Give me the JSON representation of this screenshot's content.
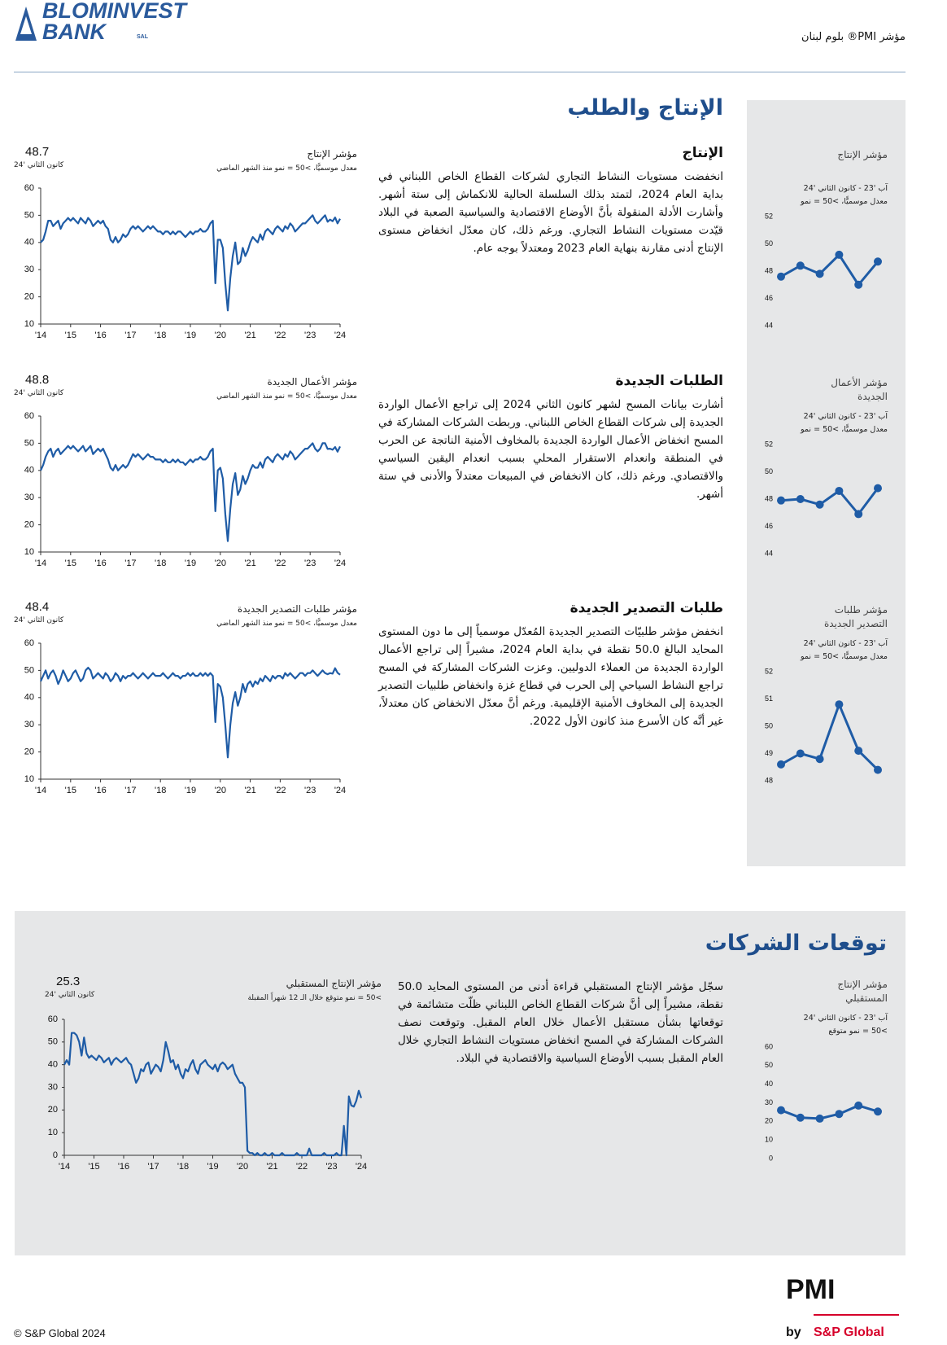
{
  "header": {
    "logo_line1": "BLOMINVEST",
    "logo_line2": "BANK",
    "logo_suffix": "SAL",
    "report_title": "مؤشر PMI® بلوم لبنان"
  },
  "sections": [
    {
      "title": "الإنتاج والطلب",
      "items": [
        {
          "heading": "الإنتاج",
          "text": "انخفضت مستويات النشاط التجاري لشركات القطاع الخاص اللبناني في بداية العام 2024، لتمتد بذلك السلسلة الحالية للانكماش إلى ستة أشهر. وأشارت الأدلة المنقولة بأنَّ الأوضاع الاقتصادية والسياسية الصعبة في البلاد قيّدت مستويات النشاط التجاري. ورغم ذلك، كان معدّل انخفاض مستوى الإنتاج أدنى مقارنة بنهاية العام 2023 ومعتدلاً بوجه عام.",
          "chart": {
            "type": "line",
            "title": "مؤشر الإنتاج",
            "subtitle": "معدل موسميًّا، >50 = نمو منذ الشهر الماضي",
            "latest": 48.7,
            "latest_label": "كانون الثاني '24",
            "color": "#1f5ca6",
            "values": [
              40,
              41,
              44,
              48,
              48,
              46,
              47,
              48,
              45,
              47,
              48,
              49,
              48,
              49,
              48,
              47,
              49,
              48,
              47,
              49,
              48,
              46,
              47,
              48,
              47,
              48,
              46,
              45,
              41,
              40,
              42,
              40,
              41,
              43,
              42,
              43,
              45,
              46,
              45,
              46,
              45,
              44,
              45,
              46,
              45,
              46,
              45,
              44,
              44,
              43,
              44,
              44,
              43,
              44,
              43,
              44,
              44,
              43,
              42,
              43,
              44,
              43,
              44,
              44,
              45,
              44,
              44,
              45,
              47,
              48,
              25,
              41,
              41,
              38,
              25,
              15,
              27,
              35,
              40,
              32,
              33,
              38,
              35,
              37,
              40,
              42,
              41,
              40,
              43,
              41,
              44,
              45,
              44,
              43,
              45,
              46,
              45,
              44,
              46,
              45,
              47,
              46,
              44,
              45,
              46,
              47,
              47,
              48,
              49,
              50,
              48,
              47,
              48,
              49,
              50,
              47.6,
              48.4,
              47.8,
              49.2,
              47.0,
              48.7
            ],
            "xlim": [
              0,
              120
            ],
            "xticks": [
              {
                "value": 0,
                "label": "'14"
              },
              {
                "value": 12,
                "label": "'15"
              },
              {
                "value": 24,
                "label": "'16"
              },
              {
                "value": 36,
                "label": "'17"
              },
              {
                "value": 48,
                "label": "'18"
              },
              {
                "value": 60,
                "label": "'19"
              },
              {
                "value": 72,
                "label": "'20"
              },
              {
                "value": 84,
                "label": "'21"
              },
              {
                "value": 96,
                "label": "'22"
              },
              {
                "value": 108,
                "label": "'23"
              },
              {
                "value": 120,
                "label": "'24"
              }
            ],
            "ylim": [
              10,
              60
            ],
            "yticks": [
              10,
              20,
              30,
              40,
              50,
              60
            ]
          },
          "mini": {
            "type": "line",
            "title": "مؤشر الإنتاج",
            "period": "آب '23 - كانون الثاني '24",
            "subtitle": "معدل موسميًّا، >50 = نمو",
            "color": "#1f5ca6",
            "values": [
              47.6,
              48.4,
              47.8,
              49.2,
              47.0,
              48.7
            ],
            "ylim": [
              44,
              52
            ],
            "yticks": [
              44,
              46,
              48,
              50,
              52
            ]
          }
        },
        {
          "heading": "الطلبات الجديدة",
          "text": "أشارت بيانات المسح لشهر كانون الثاني 2024 إلى تراجع الأعمال الواردة الجديدة إلى شركات القطاع الخاص اللبناني. وربطت الشركات المشاركة في المسح انخفاض الأعمال الواردة الجديدة بالمخاوف الأمنية الناتجة عن الحرب في المنطقة وانعدام الاستقرار المحلي بسبب انعدام اليقين السياسي والاقتصادي. ورغم ذلك، كان الانخفاض في المبيعات معتدلاً والأدنى في ستة أشهر.",
          "chart": {
            "type": "line",
            "title": "مؤشر الأعمال الجديدة",
            "subtitle": "معدل موسميًّا، >50 = نمو منذ الشهر الماضي",
            "latest": 48.8,
            "latest_label": "كانون الثاني '24",
            "color": "#1f5ca6",
            "values": [
              40,
              42,
              45,
              47,
              48,
              45,
              47,
              48,
              46,
              47,
              48,
              49,
              48,
              49,
              48,
              47,
              48,
              49,
              47,
              48,
              49,
              46,
              47,
              48,
              47,
              48,
              46,
              44,
              41,
              40,
              42,
              40,
              41,
              42,
              41,
              42,
              44,
              46,
              45,
              46,
              45,
              44,
              45,
              46,
              45,
              45,
              44,
              44,
              44,
              43,
              44,
              43,
              43,
              44,
              43,
              44,
              43,
              43,
              42,
              43,
              44,
              43,
              44,
              44,
              45,
              44,
              44,
              45,
              47,
              48,
              25,
              40,
              41,
              37,
              24,
              14,
              26,
              35,
              39,
              31,
              33,
              38,
              35,
              37,
              40,
              42,
              41,
              41,
              43,
              41,
              44,
              45,
              44,
              43,
              45,
              46,
              45,
              44,
              46,
              45,
              47,
              46,
              44,
              45,
              46,
              47,
              48,
              48,
              49,
              50,
              48,
              47,
              48,
              50,
              50,
              47.9,
              48.0,
              47.6,
              48.6,
              46.9,
              48.8
            ],
            "xlim": [
              0,
              120
            ],
            "xticks": [
              {
                "value": 0,
                "label": "'14"
              },
              {
                "value": 12,
                "label": "'15"
              },
              {
                "value": 24,
                "label": "'16"
              },
              {
                "value": 36,
                "label": "'17"
              },
              {
                "value": 48,
                "label": "'18"
              },
              {
                "value": 60,
                "label": "'19"
              },
              {
                "value": 72,
                "label": "'20"
              },
              {
                "value": 84,
                "label": "'21"
              },
              {
                "value": 96,
                "label": "'22"
              },
              {
                "value": 108,
                "label": "'23"
              },
              {
                "value": 120,
                "label": "'24"
              }
            ],
            "ylim": [
              10,
              60
            ],
            "yticks": [
              10,
              20,
              30,
              40,
              50,
              60
            ]
          },
          "mini": {
            "type": "line",
            "title": "مؤشر الأعمال الجديدة",
            "period": "آب '23 - كانون الثاني '24",
            "subtitle": "معدل موسميًّا، >50 = نمو",
            "color": "#1f5ca6",
            "values": [
              47.9,
              48.0,
              47.6,
              48.6,
              46.9,
              48.8
            ],
            "ylim": [
              44,
              52
            ],
            "yticks": [
              44,
              46,
              48,
              50,
              52
            ]
          }
        },
        {
          "heading": "طلبات التصدير الجديدة",
          "text": "انخفض مؤشر طلبيّات التصدير الجديدة المُعدّل موسمياً إلى ما دون المستوى المحايد البالغ 50.0 نقطة في بداية العام 2024، مشيراً إلى تراجع الأعمال الواردة الجديدة من العملاء الدوليين. وعزت الشركات المشاركة في المسح تراجع النشاط السياحي إلى الحرب في قطاع غزة وانخفاض طلبيات التصدير الجديدة إلى المخاوف الأمنية الإقليمية. ورغم أنَّ معدّل الانخفاض كان معتدلاً، غير أنَّه كان الأسرع منذ كانون الأول 2022.",
          "chart": {
            "type": "line",
            "title": "مؤشر طلبات التصدير الجديدة",
            "subtitle": "معدل موسميًّا، >50 = نمو منذ الشهر الماضي",
            "latest": 48.4,
            "latest_label": "كانون الثاني '24",
            "color": "#1f5ca6",
            "values": [
              46,
              48,
              50,
              47,
              49,
              50,
              48,
              45,
              47,
              50,
              48,
              46,
              47,
              49,
              50,
              48,
              46,
              47,
              50,
              51,
              50,
              47,
              48,
              49,
              48,
              47,
              49,
              48,
              46,
              47,
              49,
              48,
              46,
              48,
              47,
              48,
              48,
              49,
              48,
              47,
              48,
              49,
              48,
              47,
              48,
              49,
              48,
              48,
              48,
              49,
              48,
              47,
              48,
              49,
              48,
              48,
              47,
              48,
              48,
              49,
              48,
              49,
              48,
              48,
              49,
              48,
              49,
              48,
              49,
              48,
              31,
              45,
              44,
              40,
              30,
              18,
              30,
              38,
              42,
              37,
              40,
              45,
              42,
              45,
              46,
              44,
              46,
              45,
              47,
              46,
              48,
              47,
              46,
              48,
              47,
              48,
              48,
              47,
              49,
              48,
              49,
              48,
              47,
              48,
              49,
              49,
              48,
              49,
              49,
              50,
              49,
              48,
              49,
              50,
              49,
              48.6,
              49.0,
              48.8,
              50.8,
              49.1,
              48.4
            ],
            "xlim": [
              0,
              120
            ],
            "xticks": [
              {
                "value": 0,
                "label": "'14"
              },
              {
                "value": 12,
                "label": "'15"
              },
              {
                "value": 24,
                "label": "'16"
              },
              {
                "value": 36,
                "label": "'17"
              },
              {
                "value": 48,
                "label": "'18"
              },
              {
                "value": 60,
                "label": "'19"
              },
              {
                "value": 72,
                "label": "'20"
              },
              {
                "value": 84,
                "label": "'21"
              },
              {
                "value": 96,
                "label": "'22"
              },
              {
                "value": 108,
                "label": "'23"
              },
              {
                "value": 120,
                "label": "'24"
              }
            ],
            "ylim": [
              10,
              60
            ],
            "yticks": [
              10,
              20,
              30,
              40,
              50,
              60
            ]
          },
          "mini": {
            "type": "line",
            "title": "مؤشر طلبات التصدير الجديدة",
            "period": "آب '23 - كانون الثاني '24",
            "subtitle": "معدل موسميًّا، >50 = نمو",
            "color": "#1f5ca6",
            "values": [
              48.6,
              49.0,
              48.8,
              50.8,
              49.1,
              48.4
            ],
            "ylim": [
              48,
              52
            ],
            "yticks": [
              48,
              49,
              50,
              51,
              52
            ]
          }
        }
      ]
    },
    {
      "title": "توقعات الشركات",
      "items": [
        {
          "text": "سجّل مؤشر الإنتاج المستقبلي قراءة أدنى من المستوى المحايد 50.0 نقطة، مشيراً إلى أنَّ شركات القطاع الخاص اللبناني ظلّت متشائمة في توقعاتها بشأن مستقبل الأعمال خلال العام المقبل. وتوقعت نصف الشركات المشاركة في المسح انخفاض مستويات النشاط التجاري خلال العام المقبل بسبب الأوضاع السياسية والاقتصادية في البلاد.",
          "chart": {
            "type": "line",
            "title": "مؤشر الإنتاج المستقبلي",
            "subtitle": ">50 = نمو متوقع خلال الـ 12 شهراً المقبلة",
            "latest": 25.3,
            "latest_label": "كانون الثاني '24",
            "color": "#1f5ca6",
            "values": [
              40,
              42,
              40,
              54,
              54,
              53,
              50,
              44,
              52,
              45,
              43,
              44,
              43,
              42,
              44,
              43,
              41,
              42,
              43,
              40,
              42,
              43,
              42,
              41,
              42,
              43,
              41,
              40,
              36,
              32,
              34,
              38,
              37,
              40,
              41,
              36,
              38,
              40,
              39,
              37,
              42,
              50,
              46,
              41,
              42,
              38,
              40,
              36,
              34,
              38,
              37,
              40,
              42,
              38,
              36,
              40,
              41,
              42,
              40,
              39,
              38,
              40,
              37,
              40,
              41,
              40,
              38,
              39,
              40,
              36,
              34,
              32,
              32,
              30,
              2,
              1,
              1,
              0,
              1,
              0,
              0,
              1,
              0,
              0,
              1,
              0,
              0,
              0,
              1,
              0,
              0,
              0,
              0,
              0,
              1,
              0,
              0,
              0,
              0,
              3,
              0,
              0,
              0,
              0,
              0,
              1,
              0,
              0,
              0,
              0,
              1,
              0,
              0,
              13,
              0,
              26,
              22,
              21.5,
              24,
              28.5,
              25.3
            ],
            "xlim": [
              0,
              120
            ],
            "xticks": [
              {
                "value": 0,
                "label": "'14"
              },
              {
                "value": 12,
                "label": "'15"
              },
              {
                "value": 24,
                "label": "'16"
              },
              {
                "value": 36,
                "label": "'17"
              },
              {
                "value": 48,
                "label": "'18"
              },
              {
                "value": 60,
                "label": "'19"
              },
              {
                "value": 72,
                "label": "'20"
              },
              {
                "value": 84,
                "label": "'21"
              },
              {
                "value": 96,
                "label": "'22"
              },
              {
                "value": 108,
                "label": "'23"
              },
              {
                "value": 120,
                "label": "'24"
              }
            ],
            "ylim": [
              0,
              60
            ],
            "yticks": [
              0,
              10,
              20,
              30,
              40,
              50,
              60
            ]
          },
          "mini": {
            "type": "line",
            "title": "مؤشر الإنتاج المستقبلي",
            "period": "آب '23 - كانون الثاني '24",
            "subtitle": ">50 = نمو متوقع",
            "color": "#1f5ca6",
            "values": [
              26,
              22,
              21.5,
              24,
              28.5,
              25.3
            ],
            "ylim": [
              0,
              60
            ],
            "yticks": [
              0,
              10,
              20,
              30,
              40,
              50,
              60
            ]
          }
        }
      ]
    }
  ],
  "footer": {
    "copyright": "© S&P Global 2024",
    "pmi": "PMI",
    "by": "by",
    "brand": "S&P Global"
  }
}
